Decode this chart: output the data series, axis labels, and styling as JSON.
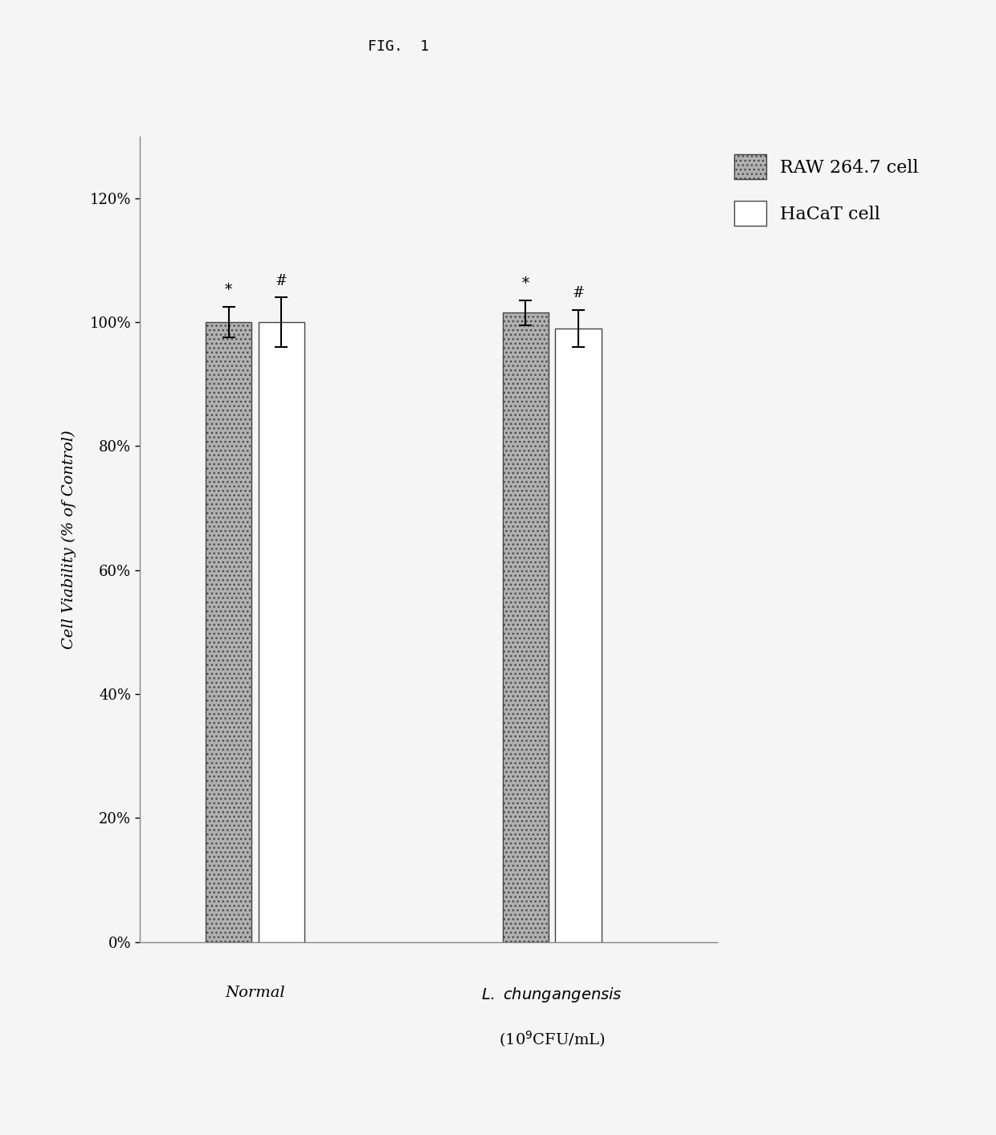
{
  "title": "FIG.  1",
  "ylabel": "Cell Viability (% of Control)",
  "groups": [
    "Normal",
    "L. chungangensis\n(10⁹CFU/mL)"
  ],
  "series": [
    "RAW 264.7 cell",
    "HaCaT cell"
  ],
  "values": [
    [
      100.0,
      100.0
    ],
    [
      101.5,
      99.0
    ]
  ],
  "errors": [
    [
      2.5,
      4.0
    ],
    [
      2.0,
      3.0
    ]
  ],
  "bar_colors": [
    "#b0b0b0",
    "#ffffff"
  ],
  "bar_edge_colors": [
    "#444444",
    "#444444"
  ],
  "yticks": [
    0,
    20,
    40,
    60,
    80,
    100,
    120
  ],
  "ytick_labels": [
    "0%",
    "20%",
    "40%",
    "60%",
    "80%",
    "100%",
    "120%"
  ],
  "ylim": [
    0,
    130
  ],
  "bar_width": 0.28,
  "background_color": "#f5f5f5",
  "annotations": [
    [
      "*",
      "#"
    ],
    [
      "*",
      "#"
    ]
  ],
  "title_fontsize": 13,
  "axis_fontsize": 14,
  "tick_fontsize": 13,
  "legend_fontsize": 16,
  "annot_fontsize": 13
}
